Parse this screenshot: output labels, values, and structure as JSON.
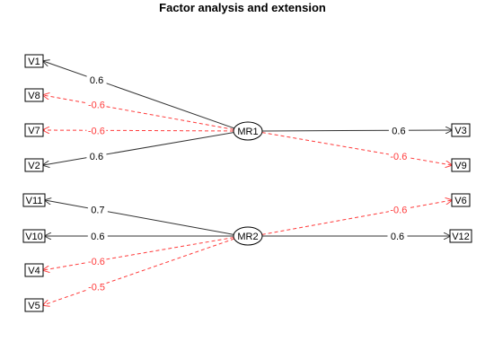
{
  "title": "Factor analysis and extension",
  "colors": {
    "positive": "#333333",
    "negative": "#ff3b3b",
    "label_positive": "#000000",
    "label_negative": "#ff3b3b"
  },
  "factors": [
    {
      "id": "MR1",
      "label": "MR1"
    },
    {
      "id": "MR2",
      "label": "MR2"
    }
  ],
  "variables": [
    {
      "id": "V1",
      "label": "V1"
    },
    {
      "id": "V8",
      "label": "V8"
    },
    {
      "id": "V7",
      "label": "V7"
    },
    {
      "id": "V2",
      "label": "V2"
    },
    {
      "id": "V11",
      "label": "V11"
    },
    {
      "id": "V10",
      "label": "V10"
    },
    {
      "id": "V4",
      "label": "V4"
    },
    {
      "id": "V5",
      "label": "V5"
    },
    {
      "id": "V3",
      "label": "V3"
    },
    {
      "id": "V9",
      "label": "V9"
    },
    {
      "id": "V6",
      "label": "V6"
    },
    {
      "id": "V12",
      "label": "V12"
    }
  ],
  "loadings": [
    {
      "from": "MR1",
      "to": "V1",
      "value": "0.6",
      "sign": "positive"
    },
    {
      "from": "MR1",
      "to": "V8",
      "value": "-0.6",
      "sign": "negative"
    },
    {
      "from": "MR1",
      "to": "V7",
      "value": "-0.6",
      "sign": "negative"
    },
    {
      "from": "MR1",
      "to": "V2",
      "value": "0.6",
      "sign": "positive"
    },
    {
      "from": "MR1",
      "to": "V3",
      "value": "0.6",
      "sign": "positive"
    },
    {
      "from": "MR1",
      "to": "V9",
      "value": "-0.6",
      "sign": "negative"
    },
    {
      "from": "MR2",
      "to": "V11",
      "value": "0.7",
      "sign": "positive"
    },
    {
      "from": "MR2",
      "to": "V10",
      "value": "0.6",
      "sign": "positive"
    },
    {
      "from": "MR2",
      "to": "V4",
      "value": "-0.6",
      "sign": "negative"
    },
    {
      "from": "MR2",
      "to": "V5",
      "value": "-0.5",
      "sign": "negative"
    },
    {
      "from": "MR2",
      "to": "V6",
      "value": "-0.6",
      "sign": "negative"
    },
    {
      "from": "MR2",
      "to": "V12",
      "value": "0.6",
      "sign": "positive"
    }
  ]
}
